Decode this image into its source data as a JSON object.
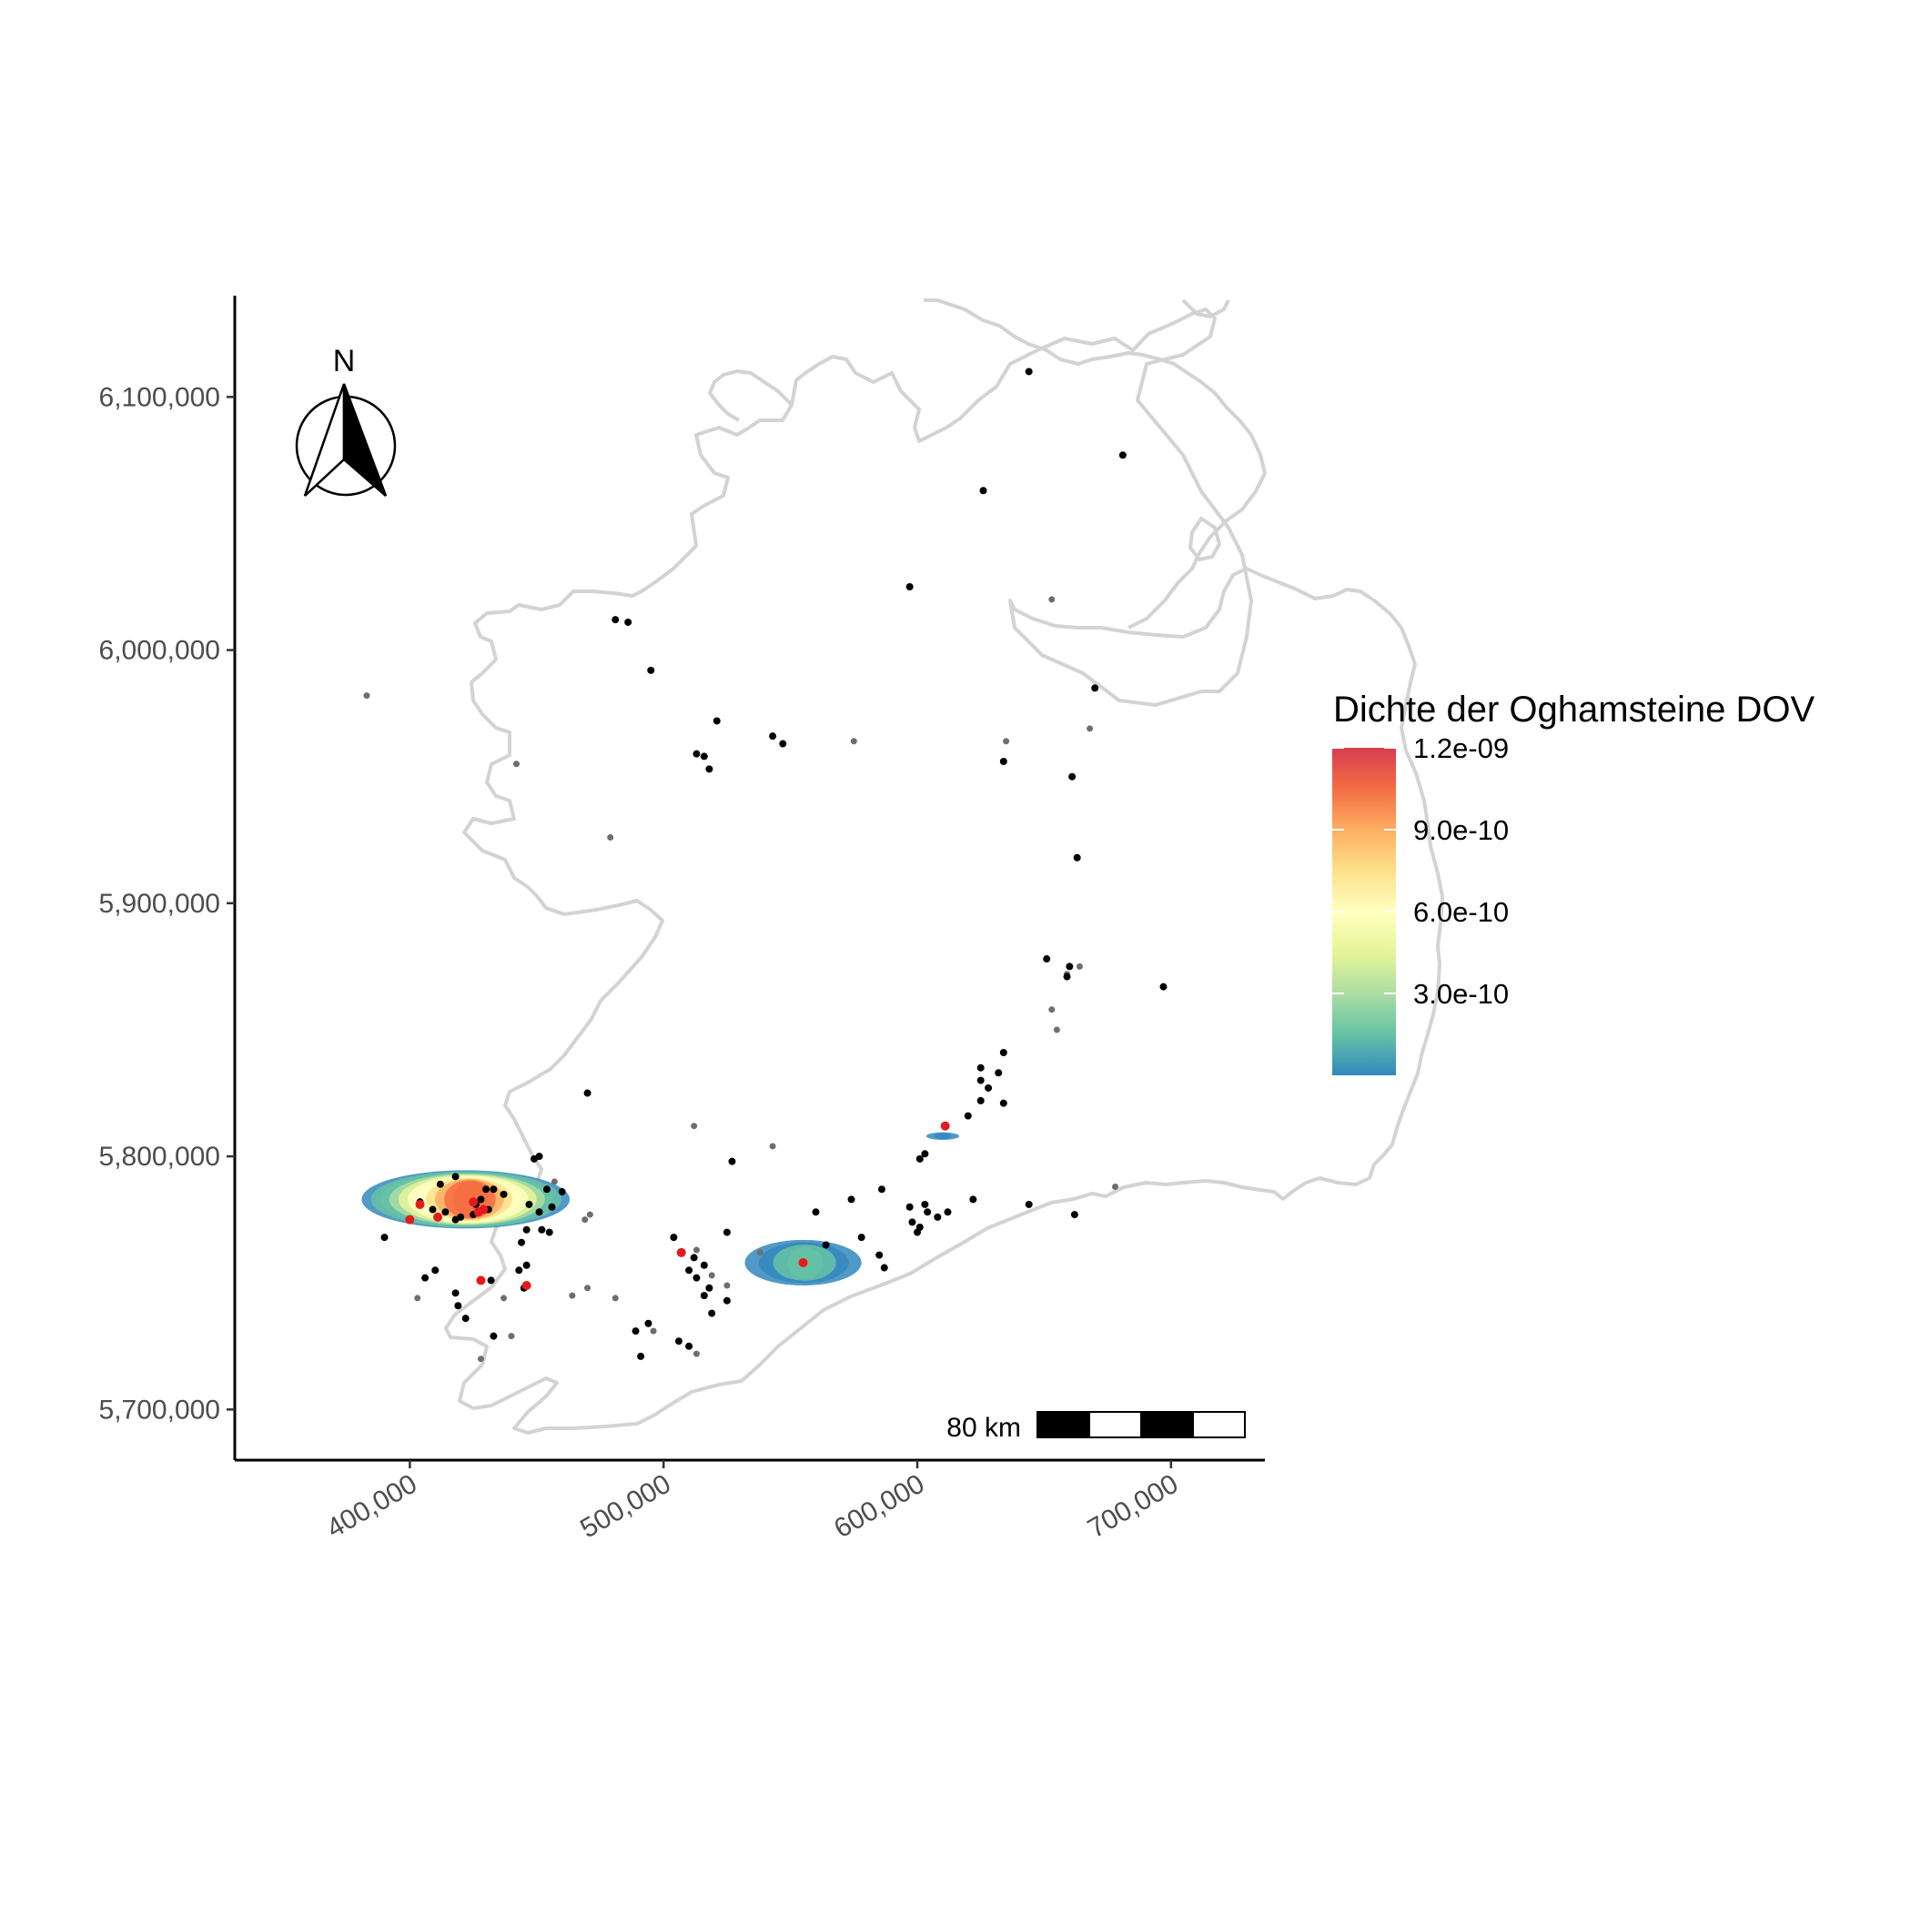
{
  "chart_data": {
    "type": "scatter",
    "map_kind": "kernel density map",
    "x_ticks": [
      400000,
      500000,
      600000,
      700000
    ],
    "x_tick_labels": [
      "400,000",
      "500,000",
      "600,000",
      "700,000"
    ],
    "y_ticks": [
      5700000,
      5800000,
      5900000,
      6000000,
      6100000
    ],
    "y_tick_labels": [
      "5,700,000",
      "5,800,000",
      "5,900,000",
      "6,000,000",
      "6,100,000"
    ],
    "xlim": [
      331000,
      737000
    ],
    "ylim": [
      5680000,
      6140000
    ],
    "grid": false,
    "north_arrow": {
      "label": "N",
      "position": "top-left"
    },
    "scale_bar": {
      "label": "80 km",
      "position": "bottom-right"
    },
    "legend": {
      "title": "Dichte der Oghamsteine DOV",
      "placement": "right",
      "range": [
        0,
        1.2e-09
      ],
      "breaks": [
        1.2e-09,
        9e-10,
        6e-10,
        3e-10
      ],
      "labels": [
        "1.2e-09",
        "9.0e-10",
        "6.0e-10",
        "3.0e-10"
      ],
      "colors": [
        "#d53e4f",
        "#f46d43",
        "#fdae61",
        "#fee08b",
        "#ffffbf",
        "#e6f598",
        "#abdda4",
        "#66c2a5",
        "#3288bd"
      ]
    },
    "density_hotspots": [
      {
        "center": [
          422000,
          5783000
        ],
        "rx": 41000,
        "ry": 11500,
        "peak": 1.2e-09
      },
      {
        "center": [
          555000,
          5758000
        ],
        "rx": 23000,
        "ry": 9000,
        "peak": 2e-10
      },
      {
        "center": [
          610000,
          5808000
        ],
        "rx": 6500,
        "ry": 1500,
        "peak": 5e-11
      }
    ],
    "marker_colors": {
      "stone": "#000000",
      "uncertain": "#6e6e6e",
      "highlight": "#e41a1c"
    },
    "points": [
      [
        644000,
        6110000
      ],
      [
        681000,
        6077000
      ],
      [
        626000,
        6063000
      ],
      [
        597000,
        6025000
      ],
      [
        481000,
        6012000
      ],
      [
        486000,
        6011000
      ],
      [
        495000,
        5992000
      ],
      [
        521000,
        5972000
      ],
      [
        513000,
        5959000
      ],
      [
        516000,
        5958000
      ],
      [
        518000,
        5953000
      ],
      [
        543000,
        5966000
      ],
      [
        547000,
        5963000
      ],
      [
        634000,
        5956000
      ],
      [
        661000,
        5950000
      ],
      [
        670000,
        5985000
      ],
      [
        663000,
        5918000
      ],
      [
        651000,
        5878000
      ],
      [
        660000,
        5875000
      ],
      [
        659000,
        5871000
      ],
      [
        697000,
        5867000
      ],
      [
        634000,
        5841000
      ],
      [
        625000,
        5835000
      ],
      [
        625000,
        5830000
      ],
      [
        632000,
        5833000
      ],
      [
        628000,
        5827000
      ],
      [
        625000,
        5822000
      ],
      [
        634000,
        5821000
      ],
      [
        620000,
        5816000
      ],
      [
        470000,
        5825000
      ],
      [
        601000,
        5799000
      ],
      [
        603000,
        5801000
      ],
      [
        527000,
        5798000
      ],
      [
        560000,
        5778000
      ],
      [
        574000,
        5783000
      ],
      [
        586000,
        5787000
      ],
      [
        597000,
        5780000
      ],
      [
        603000,
        5781000
      ],
      [
        604000,
        5778000
      ],
      [
        608000,
        5776000
      ],
      [
        598000,
        5774000
      ],
      [
        601000,
        5772000
      ],
      [
        600000,
        5770000
      ],
      [
        622000,
        5783000
      ],
      [
        612000,
        5778000
      ],
      [
        644000,
        5781000
      ],
      [
        662000,
        5777000
      ],
      [
        578000,
        5768000
      ],
      [
        585000,
        5761000
      ],
      [
        587000,
        5756000
      ],
      [
        564000,
        5765000
      ],
      [
        525000,
        5770000
      ],
      [
        504000,
        5768000
      ],
      [
        512000,
        5760000
      ],
      [
        516000,
        5757000
      ],
      [
        510000,
        5755000
      ],
      [
        513000,
        5752000
      ],
      [
        518000,
        5748000
      ],
      [
        516000,
        5745000
      ],
      [
        525000,
        5743000
      ],
      [
        519000,
        5738000
      ],
      [
        510000,
        5725000
      ],
      [
        506000,
        5727000
      ],
      [
        494000,
        5734000
      ],
      [
        489000,
        5731000
      ],
      [
        491000,
        5721000
      ],
      [
        445000,
        5748000
      ],
      [
        432000,
        5751000
      ],
      [
        406000,
        5752000
      ],
      [
        410000,
        5755000
      ],
      [
        418000,
        5746000
      ],
      [
        419000,
        5741000
      ],
      [
        422000,
        5736000
      ],
      [
        433000,
        5729000
      ],
      [
        455000,
        5770000
      ],
      [
        452000,
        5771000
      ],
      [
        446000,
        5771000
      ],
      [
        451000,
        5778000
      ],
      [
        447000,
        5781000
      ],
      [
        454000,
        5787000
      ],
      [
        460000,
        5786000
      ],
      [
        449000,
        5799000
      ],
      [
        451000,
        5800000
      ],
      [
        437000,
        5785000
      ],
      [
        433000,
        5787000
      ],
      [
        428000,
        5783000
      ],
      [
        425000,
        5777000
      ],
      [
        418000,
        5775000
      ],
      [
        414000,
        5778000
      ],
      [
        409000,
        5779000
      ],
      [
        404000,
        5782000
      ],
      [
        412000,
        5789000
      ],
      [
        418000,
        5792000
      ],
      [
        420000,
        5776000
      ],
      [
        426000,
        5781000
      ],
      [
        431000,
        5779000
      ],
      [
        390000,
        5768000
      ],
      [
        444000,
        5766000
      ],
      [
        446000,
        5757000
      ],
      [
        443000,
        5755000
      ],
      [
        456000,
        5780000
      ],
      [
        430000,
        5787000
      ]
    ],
    "faint_points": [
      [
        653000,
        6020000
      ],
      [
        575000,
        5964000
      ],
      [
        635000,
        5964000
      ],
      [
        668000,
        5969000
      ],
      [
        479000,
        5926000
      ],
      [
        442000,
        5955000
      ],
      [
        383000,
        5982000
      ],
      [
        653000,
        5858000
      ],
      [
        655000,
        5850000
      ],
      [
        664000,
        5875000
      ],
      [
        659000,
        5872000
      ],
      [
        678000,
        5788000
      ],
      [
        543000,
        5804000
      ],
      [
        512000,
        5812000
      ],
      [
        471000,
        5777000
      ],
      [
        457000,
        5790000
      ],
      [
        470000,
        5748000
      ],
      [
        464000,
        5745000
      ],
      [
        481000,
        5744000
      ],
      [
        437000,
        5744000
      ],
      [
        403000,
        5744000
      ],
      [
        525000,
        5749000
      ],
      [
        538000,
        5762000
      ],
      [
        519000,
        5753000
      ],
      [
        513000,
        5763000
      ],
      [
        496000,
        5731000
      ],
      [
        513000,
        5722000
      ],
      [
        440000,
        5729000
      ],
      [
        428000,
        5720000
      ],
      [
        469000,
        5775000
      ]
    ],
    "highlight_points": [
      [
        400000,
        5775000
      ],
      [
        404000,
        5781000
      ],
      [
        411000,
        5776000
      ],
      [
        425000,
        5782000
      ],
      [
        429000,
        5779000
      ],
      [
        427000,
        5778000
      ],
      [
        428000,
        5751000
      ],
      [
        446000,
        5749000
      ],
      [
        507000,
        5762000
      ],
      [
        555000,
        5758000
      ],
      [
        611000,
        5812000
      ]
    ]
  }
}
